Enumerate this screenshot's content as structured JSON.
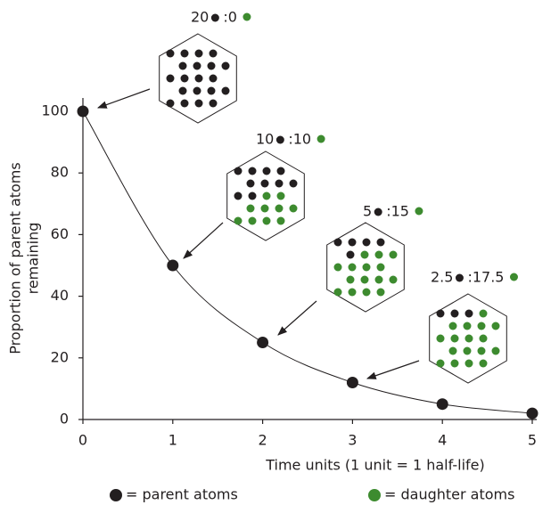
{
  "chart_data": {
    "type": "line",
    "x": [
      0,
      1,
      2,
      3,
      4,
      5
    ],
    "series": [
      {
        "color": "#231f20",
        "values": [
          100,
          50,
          25,
          12,
          5,
          2
        ]
      }
    ],
    "xlim": [
      0,
      5
    ],
    "xticks": [
      0,
      1,
      2,
      3,
      4,
      5
    ],
    "ylim": [
      0,
      100
    ],
    "yticks": [
      0,
      20,
      40,
      60,
      80,
      100
    ],
    "x_label": "Time units (1 unit = 1 half-life)",
    "y_label": [
      "Proportion of parent atoms",
      "remaining"
    ],
    "annotations": [
      {
        "parent": "20",
        "daughter": ":0"
      },
      {
        "parent": "10",
        "daughter": ":10"
      },
      {
        "parent": "5",
        "daughter": ":15"
      },
      {
        "parent": "2.5",
        "daughter": ":17.5"
      }
    ],
    "legend": [
      {
        "label": "= parent atoms",
        "color": "#231f20"
      },
      {
        "label": "= daughter atoms",
        "color": "#3d8b2f"
      }
    ]
  }
}
